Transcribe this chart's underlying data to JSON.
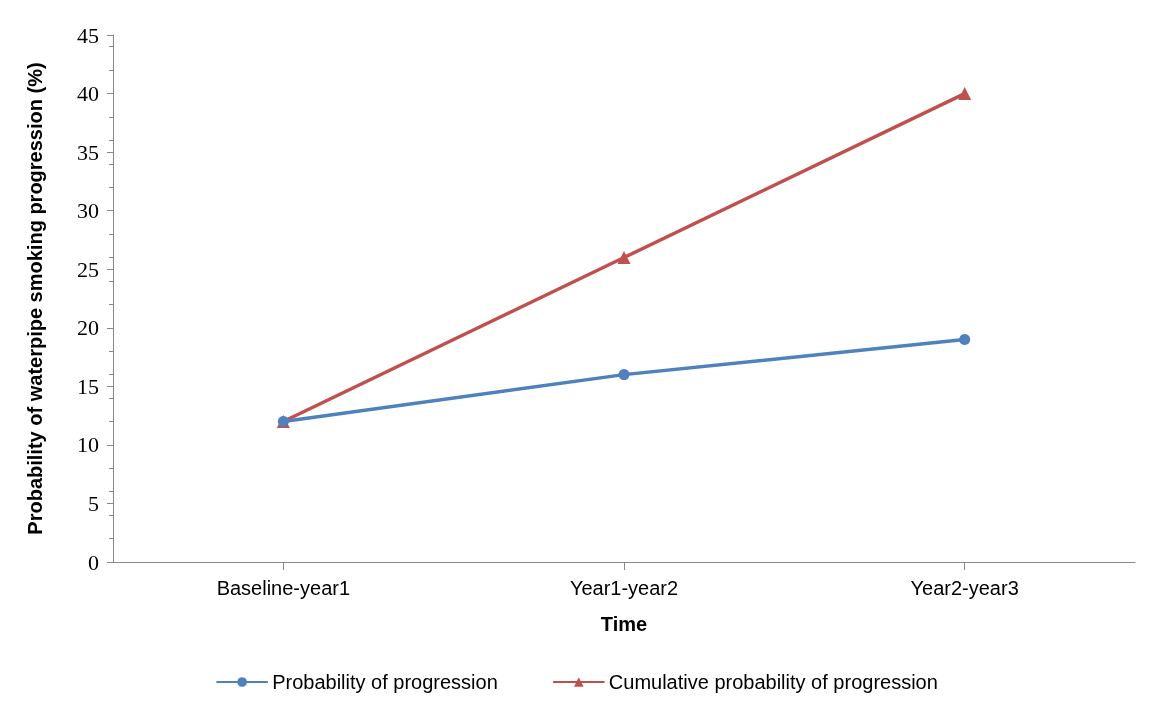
{
  "chart_data": {
    "type": "line",
    "xlabel": "Time",
    "ylabel": "Probability of waterpipe smoking progression (%)",
    "categories": [
      "Baseline-year1",
      "Year1-year2",
      "Year2-year3"
    ],
    "series": [
      {
        "name": "Probability of progression",
        "color": "#4f81bd",
        "marker": "circle",
        "values": [
          12,
          16,
          19
        ]
      },
      {
        "name": "Cumulative probability of progression",
        "color": "#c0504d",
        "marker": "triangle",
        "values": [
          12,
          26,
          40
        ]
      }
    ],
    "ylim": [
      0,
      45
    ],
    "yticks": [
      0,
      5,
      10,
      15,
      20,
      25,
      30,
      35,
      40,
      45
    ],
    "grid": false,
    "legend": "bottom",
    "line_style": "solid"
  }
}
